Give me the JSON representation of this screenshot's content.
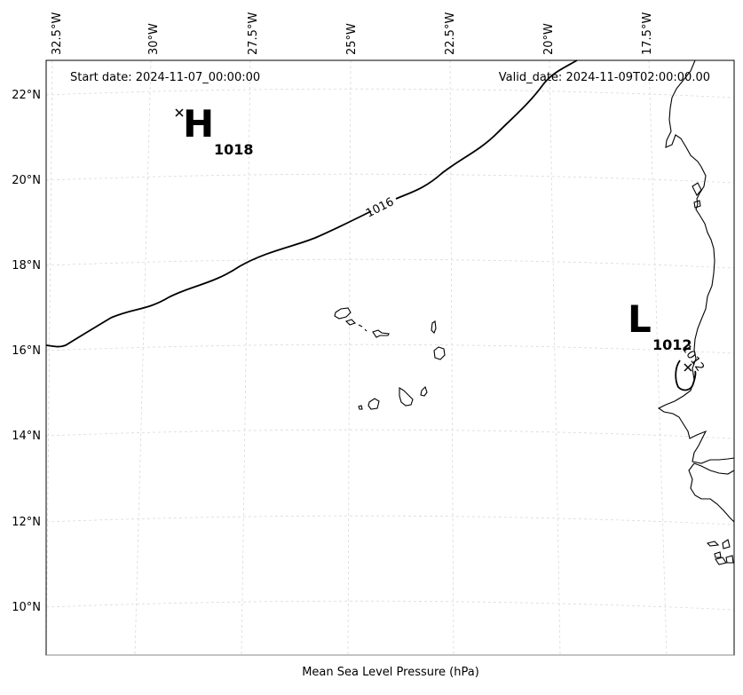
{
  "header": {
    "start_date": "Start date: 2024-11-07_00:00:00",
    "valid_date": "Valid_date: 2024-11-09T02:00:00.00"
  },
  "footer": {
    "xlabel": "Mean Sea Level Pressure (hPa)"
  },
  "axes": {
    "lon_labels": [
      "32.5°W",
      "30°W",
      "27.5°W",
      "25°W",
      "22.5°W",
      "20°W",
      "17.5°W"
    ],
    "lat_labels": [
      "22°N",
      "20°N",
      "18°N",
      "16°N",
      "14°N",
      "12°N",
      "10°N"
    ]
  },
  "pressure_centers": [
    {
      "type": "H",
      "letter": "H",
      "value": "1018"
    },
    {
      "type": "L",
      "letter": "L",
      "value": "1012"
    }
  ],
  "isobars": [
    {
      "label": "1016"
    },
    {
      "label": "1012"
    }
  ]
}
